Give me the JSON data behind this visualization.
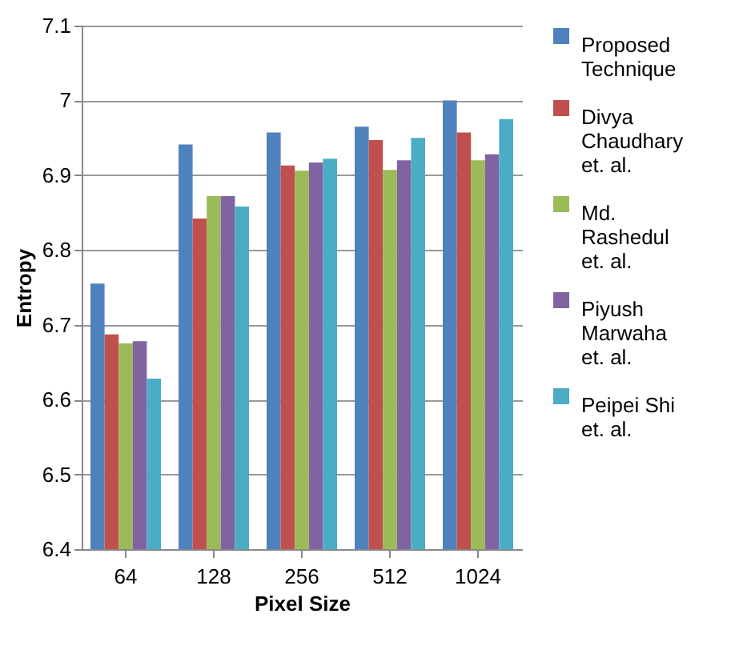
{
  "chart_data": {
    "type": "bar",
    "xlabel": "Pixel Size",
    "ylabel": "Entropy",
    "categories": [
      "64",
      "128",
      "256",
      "512",
      "1024"
    ],
    "series": [
      {
        "name": "Proposed Technique",
        "color": "#4f81bd",
        "values": [
          6.755,
          6.941,
          6.957,
          6.965,
          7.0
        ]
      },
      {
        "name": "Divya Chaudhary et. al.",
        "color": "#c0504d",
        "values": [
          6.687,
          6.842,
          6.913,
          6.947,
          6.957
        ]
      },
      {
        "name": "Md. Rashedul et. al.",
        "color": "#9bbb59",
        "values": [
          6.675,
          6.872,
          6.906,
          6.907,
          6.92
        ]
      },
      {
        "name": "Piyush Marwaha et. al.",
        "color": "#8064a2",
        "values": [
          6.678,
          6.872,
          6.917,
          6.92,
          6.928
        ]
      },
      {
        "name": "Peipei Shi et. al.",
        "color": "#4bacc6",
        "values": [
          6.628,
          6.858,
          6.922,
          6.95,
          6.975
        ]
      }
    ],
    "ylim": [
      6.4,
      7.1
    ],
    "yticks": [
      6.4,
      6.5,
      6.6,
      6.7,
      6.8,
      6.9,
      {
        "value": 7,
        "label": "7"
      },
      7.1
    ],
    "grid": "y",
    "legend": "right"
  }
}
